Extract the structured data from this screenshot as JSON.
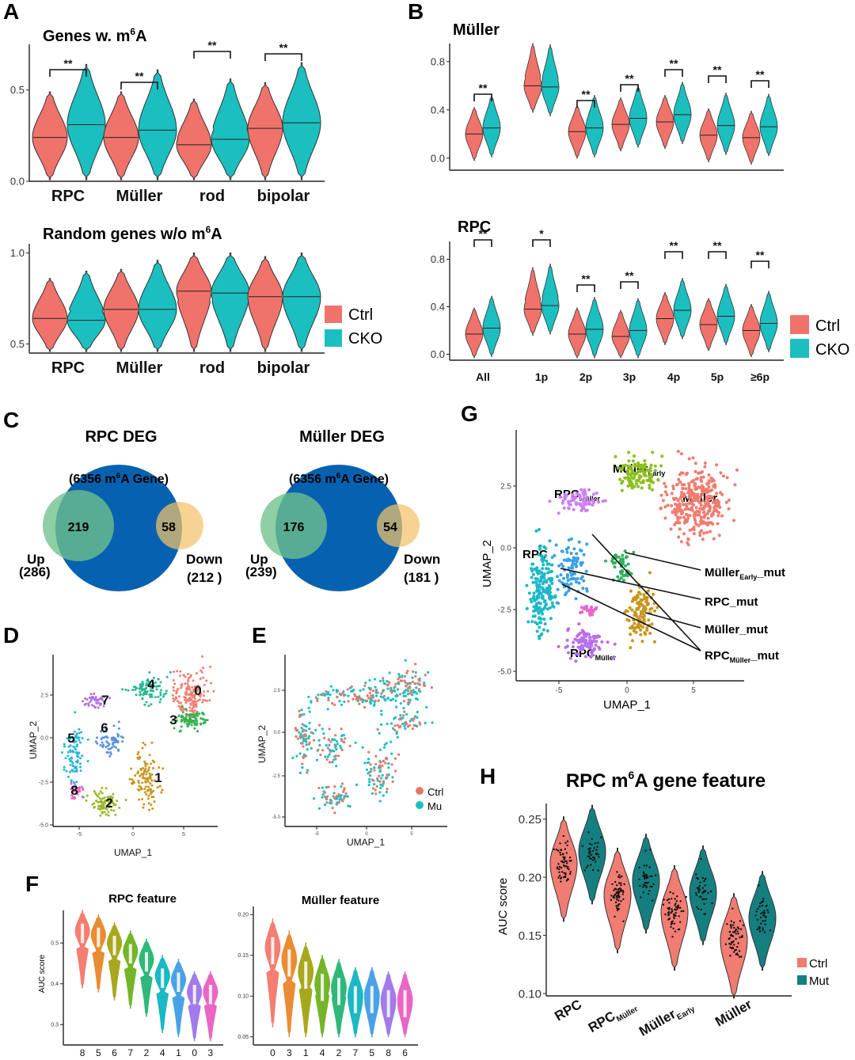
{
  "colors": {
    "ctrl": "#F0736B",
    "cko": "#1BBFBF",
    "ctrl_h": "#F07C72",
    "mut_h": "#157F80",
    "venn_blue": "#0662B0",
    "venn_green": "#6FC18C",
    "venn_orange": "#F4C26A",
    "axis": "#222222",
    "umap_ctrl": "#E5786C",
    "umap_mu": "#1BBFBF"
  },
  "panelA": {
    "label": "A",
    "top": {
      "title_pre": "Genes w. m",
      "title_sup": "6",
      "title_post": "A",
      "yticks": [
        "0.0",
        "0.5"
      ],
      "categories": [
        "RPC",
        "Müller",
        "rod",
        "bipolar"
      ],
      "signif": [
        "**",
        "**",
        "**",
        "**"
      ]
    },
    "bottom": {
      "title_pre": "Random genes w/o m",
      "title_sup": "6",
      "title_post": "A",
      "yticks": [
        "0.5",
        "1.0"
      ],
      "categories": [
        "RPC",
        "Müller",
        "rod",
        "bipolar"
      ]
    },
    "legend": [
      "Ctrl",
      "CKO"
    ]
  },
  "panelB": {
    "label": "B",
    "top": {
      "title": "Müller",
      "yticks": [
        "0.0",
        "0.4",
        "0.8"
      ],
      "signif": [
        "**",
        "",
        "**",
        "**",
        "**",
        "**",
        "**"
      ]
    },
    "bottom": {
      "title": "RPC",
      "yticks": [
        "0.0",
        "0.4",
        "0.8"
      ],
      "signif": [
        "**",
        "*",
        "**",
        "**",
        "**",
        "**",
        "**"
      ]
    },
    "categories": [
      "All",
      "1p",
      "2p",
      "3p",
      "4p",
      "5p",
      "≥6p"
    ],
    "legend": [
      "Ctrl",
      "CKO"
    ]
  },
  "panelC": {
    "label": "C",
    "venns": [
      {
        "title": "RPC DEG",
        "inner_pre": "(6356 m",
        "inner_sup": "6",
        "inner_post": "A Gene)",
        "up_count": "219",
        "down_count": "58",
        "up_label": "Up",
        "up_total": "(286)",
        "down_label": "Down",
        "down_total": "(212 )"
      },
      {
        "title": "Müller DEG",
        "inner_pre": "(6356 m",
        "inner_sup": "6",
        "inner_post": "A Gene)",
        "up_count": "176",
        "down_count": "54",
        "up_label": "Up",
        "up_total": "(239)",
        "down_label": "Down",
        "down_total": "(181 )"
      }
    ]
  },
  "panelD": {
    "label": "D",
    "xlabel": "UMAP_1",
    "ylabel": "UMAP_2",
    "clusters": [
      "0",
      "1",
      "2",
      "3",
      "4",
      "5",
      "6",
      "7",
      "8"
    ],
    "xticks": [
      "-5",
      "0",
      "5"
    ],
    "yticks": [
      "-5.0",
      "-2.5",
      "0.0",
      "2.5"
    ]
  },
  "panelE": {
    "label": "E",
    "xlabel": "UMAP_1",
    "ylabel": "UMAP_2",
    "legend": [
      "Ctrl",
      "Mu"
    ],
    "xticks": [
      "-5",
      "0",
      "5"
    ],
    "yticks": [
      "-5.0",
      "-2.5",
      "0.0",
      "2.5"
    ]
  },
  "panelF": {
    "label": "F",
    "ylabel": "AUC score",
    "left": {
      "title": "RPC feature",
      "order": [
        "8",
        "5",
        "6",
        "7",
        "2",
        "4",
        "1",
        "0",
        "3"
      ],
      "yticks": [
        "0.3",
        "0.4",
        "0.5"
      ]
    },
    "right": {
      "title": "Müller feature",
      "order": [
        "0",
        "3",
        "1",
        "4",
        "2",
        "7",
        "5",
        "8",
        "6"
      ],
      "yticks": [
        "0.05",
        "0.10",
        "0.15",
        "0.20"
      ]
    }
  },
  "panelG": {
    "label": "G",
    "xlabel": "UMAP_1",
    "ylabel": "UMAP_2",
    "xticks": [
      "-5",
      "0",
      "5"
    ],
    "yticks": [
      "-5.0",
      "-2.5",
      "0.0",
      "2.5"
    ],
    "cluster_labels": {
      "muller_early": "Müller",
      "muller_early_sub": "Early",
      "muller": "Müller",
      "rpc_muller": "RPC",
      "rpc_muller_sub": "Müller",
      "rpc": "RPC",
      "rpc_muller2": "RPC",
      "rpc_muller2_sub": "Müller"
    },
    "callouts": {
      "muller_early_mut": "Müller",
      "muller_early_mut_sub": "Early",
      "muller_early_mut_suffix": "_mut",
      "rpc_mut": "RPC_mut",
      "muller_mut": "Müller_mut",
      "rpc_muller_mut": "RPC",
      "rpc_muller_mut_sub": "Müller",
      "rpc_muller_mut_suffix": "_mut"
    }
  },
  "panelH": {
    "label": "H",
    "title_pre": "RPC m",
    "title_sup": "6",
    "title_post": "A gene feature",
    "ylabel": "AUC score",
    "yticks": [
      "0.10",
      "0.15",
      "0.20",
      "0.25"
    ],
    "groups": [
      {
        "name": "RPC",
        "sub": "",
        "tail": ""
      },
      {
        "name": "RPC",
        "sub": "Müller",
        "tail": ""
      },
      {
        "name": "Müller",
        "sub": "Early",
        "tail": ""
      },
      {
        "name": "Müller",
        "sub": "",
        "tail": ""
      }
    ],
    "legend": [
      "Ctrl",
      "Mut"
    ]
  },
  "chart_data": [
    {
      "id": "A-top",
      "type": "violin",
      "title": "Genes w. m6A",
      "categories": [
        "RPC",
        "Müller",
        "rod",
        "bipolar"
      ],
      "ylim": [
        0,
        0.75
      ],
      "series": [
        {
          "name": "Ctrl",
          "values": [
            0.24,
            0.24,
            0.2,
            0.29
          ]
        },
        {
          "name": "CKO",
          "values": [
            0.31,
            0.28,
            0.23,
            0.32
          ]
        }
      ]
    },
    {
      "id": "A-bottom",
      "type": "violin",
      "title": "Random genes w/o m6A",
      "categories": [
        "RPC",
        "Müller",
        "rod",
        "bipolar"
      ],
      "ylim": [
        0.45,
        1.05
      ],
      "series": [
        {
          "name": "Ctrl",
          "values": [
            0.64,
            0.69,
            0.79,
            0.76
          ]
        },
        {
          "name": "CKO",
          "values": [
            0.63,
            0.69,
            0.78,
            0.76
          ]
        }
      ]
    },
    {
      "id": "B-top",
      "type": "violin",
      "title": "Müller",
      "categories": [
        "All",
        "1p",
        "2p",
        "3p",
        "4p",
        "5p",
        "≥6p"
      ],
      "ylim": [
        -0.1,
        0.95
      ],
      "series": [
        {
          "name": "Ctrl",
          "values": [
            0.2,
            0.6,
            0.22,
            0.28,
            0.3,
            0.19,
            0.17
          ]
        },
        {
          "name": "CKO",
          "values": [
            0.25,
            0.59,
            0.25,
            0.33,
            0.36,
            0.27,
            0.26
          ]
        }
      ]
    },
    {
      "id": "B-bottom",
      "type": "violin",
      "title": "RPC",
      "categories": [
        "All",
        "1p",
        "2p",
        "3p",
        "4p",
        "5p",
        "≥6p"
      ],
      "ylim": [
        -0.05,
        0.95
      ],
      "series": [
        {
          "name": "Ctrl",
          "values": [
            0.17,
            0.38,
            0.17,
            0.15,
            0.3,
            0.25,
            0.2
          ]
        },
        {
          "name": "CKO",
          "values": [
            0.22,
            0.41,
            0.21,
            0.2,
            0.37,
            0.32,
            0.26
          ]
        }
      ]
    },
    {
      "id": "F-left",
      "type": "violin",
      "title": "RPC feature",
      "categories": [
        "8",
        "5",
        "6",
        "7",
        "2",
        "4",
        "1",
        "0",
        "3"
      ],
      "ylim": [
        0.25,
        0.58
      ],
      "series": [
        {
          "name": "AUC score",
          "values": [
            0.53,
            0.52,
            0.5,
            0.48,
            0.46,
            0.42,
            0.41,
            0.38,
            0.38
          ]
        }
      ]
    },
    {
      "id": "F-right",
      "type": "violin",
      "title": "Müller feature",
      "categories": [
        "0",
        "3",
        "1",
        "4",
        "2",
        "7",
        "5",
        "8",
        "6"
      ],
      "ylim": [
        0.04,
        0.21
      ],
      "series": [
        {
          "name": "AUC score",
          "values": [
            0.16,
            0.145,
            0.13,
            0.115,
            0.11,
            0.1,
            0.1,
            0.095,
            0.095
          ]
        }
      ]
    },
    {
      "id": "H",
      "type": "violin",
      "title": "RPC m6A gene feature",
      "categories": [
        "RPC",
        "RPC_Müller",
        "Müller_Early",
        "Müller"
      ],
      "ylim": [
        0.1,
        0.26
      ],
      "series": [
        {
          "name": "Ctrl",
          "values": [
            0.212,
            0.185,
            0.17,
            0.146
          ]
        },
        {
          "name": "Mut",
          "values": [
            0.222,
            0.197,
            0.187,
            0.165
          ]
        }
      ]
    }
  ]
}
